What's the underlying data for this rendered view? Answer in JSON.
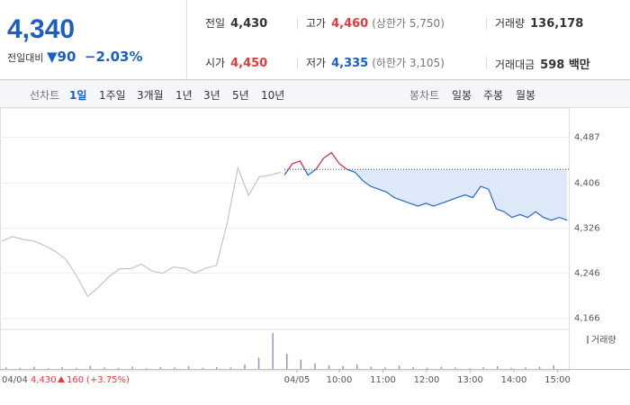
{
  "quote": {
    "price": "4,340",
    "change_label": "전일대비",
    "change": "90",
    "change_pct": "−2.03%"
  },
  "stats": [
    {
      "label": "전일",
      "value": "4,430"
    },
    {
      "label": "고가",
      "value": "4,460",
      "note": "(상한가 5,750)"
    },
    {
      "label": "거래량",
      "value": "136,178"
    },
    {
      "label": "시가",
      "value": "4,450"
    },
    {
      "label": "저가",
      "value": "4,335",
      "note": "(하한가 3,105)"
    },
    {
      "label": "거래대금",
      "value": "598 백만"
    }
  ],
  "tabs": {
    "line_label": "선차트",
    "line_periods": [
      "1일",
      "1주일",
      "3개월",
      "1년",
      "3년",
      "5년",
      "10년"
    ],
    "candle_label": "봉차트",
    "candle_periods": [
      "일봉",
      "주봉",
      "월봉"
    ]
  },
  "chart_data": {
    "type": "line",
    "ylim": [
      4148,
      4531
    ],
    "yticks": [
      {
        "value": 4166,
        "label": "4,166"
      },
      {
        "value": 4246,
        "label": "4,246"
      },
      {
        "value": 4326,
        "label": "4,326"
      },
      {
        "value": 4406,
        "label": "4,406"
      },
      {
        "value": 4487,
        "label": "4,487"
      }
    ],
    "grid": true,
    "prev_close": 4430,
    "series": [
      {
        "color": "#c4c4c4",
        "values": [
          4303,
          4311,
          4306,
          4303,
          4295,
          4285,
          4270,
          4240,
          4205,
          4221,
          4240,
          4254,
          4254,
          4262,
          4250,
          4246,
          4257,
          4255,
          4246,
          4255,
          4260,
          4335,
          4433,
          4384,
          4417,
          4420,
          4425
        ]
      },
      {
        "color": "#2b68c9",
        "up_color": "#e23b3b",
        "values": [
          4420,
          4440,
          4445,
          4420,
          4430,
          4450,
          4460,
          4440,
          4430,
          4425,
          4410,
          4400,
          4395,
          4390,
          4380,
          4375,
          4370,
          4365,
          4370,
          4365,
          4370,
          4375,
          4380,
          4385,
          4380,
          4400,
          4395,
          4360,
          4355,
          4345,
          4350,
          4345,
          4355,
          4345,
          4340,
          4345,
          4340
        ]
      }
    ],
    "xticks": [
      "04/05",
      "10:00",
      "11:00",
      "12:00",
      "13:00",
      "14:00",
      "15:00"
    ],
    "volume": {
      "name": "거래량",
      "color": "#9a94bd",
      "ylim": [
        0,
        100
      ],
      "values": [
        4,
        3,
        6,
        2,
        5,
        3,
        8,
        4,
        3,
        6,
        2,
        5,
        4,
        7,
        3,
        5,
        4,
        12,
        30,
        95,
        40,
        25,
        15,
        10,
        8,
        12,
        6,
        4,
        9,
        5,
        3,
        6,
        4,
        2,
        5,
        7,
        3,
        4,
        6,
        10
      ]
    }
  },
  "footer": {
    "date": "04/04",
    "price": "4,430",
    "change": "160",
    "pct": "(+3.75%)"
  }
}
